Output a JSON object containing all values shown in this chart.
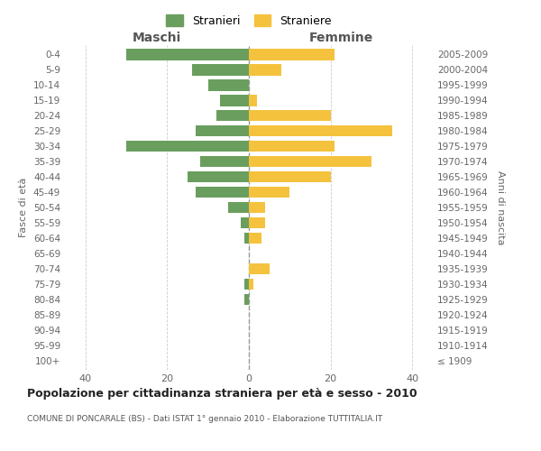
{
  "age_groups": [
    "100+",
    "95-99",
    "90-94",
    "85-89",
    "80-84",
    "75-79",
    "70-74",
    "65-69",
    "60-64",
    "55-59",
    "50-54",
    "45-49",
    "40-44",
    "35-39",
    "30-34",
    "25-29",
    "20-24",
    "15-19",
    "10-14",
    "5-9",
    "0-4"
  ],
  "birth_years": [
    "≤ 1909",
    "1910-1914",
    "1915-1919",
    "1920-1924",
    "1925-1929",
    "1930-1934",
    "1935-1939",
    "1940-1944",
    "1945-1949",
    "1950-1954",
    "1955-1959",
    "1960-1964",
    "1965-1969",
    "1970-1974",
    "1975-1979",
    "1980-1984",
    "1985-1989",
    "1990-1994",
    "1995-1999",
    "2000-2004",
    "2005-2009"
  ],
  "maschi": [
    0,
    0,
    0,
    0,
    1,
    1,
    0,
    0,
    1,
    2,
    5,
    13,
    15,
    12,
    30,
    13,
    8,
    7,
    10,
    14,
    30
  ],
  "femmine": [
    0,
    0,
    0,
    0,
    0,
    1,
    5,
    0,
    3,
    4,
    4,
    10,
    20,
    30,
    21,
    35,
    20,
    2,
    0,
    8,
    21
  ],
  "color_maschi": "#6a9e5e",
  "color_femmine": "#f5c23e",
  "title": "Popolazione per cittadinanza straniera per età e sesso - 2010",
  "subtitle": "COMUNE DI PONCARALE (BS) - Dati ISTAT 1° gennaio 2010 - Elaborazione TUTTITALIA.IT",
  "xlabel_left": "Maschi",
  "xlabel_right": "Femmine",
  "ylabel_left": "Fasce di età",
  "ylabel_right": "Anni di nascita",
  "legend_maschi": "Stranieri",
  "legend_femmine": "Straniere",
  "xlim": 45,
  "background_color": "#ffffff",
  "grid_color": "#cccccc"
}
